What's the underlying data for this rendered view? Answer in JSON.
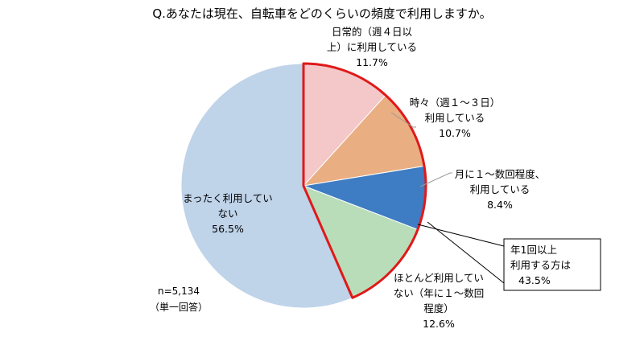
{
  "chart_data": {
    "type": "pie",
    "title": "Q.あなたは現在、自転車をどのくらいの頻度で利用しますか。",
    "slices": [
      {
        "name": "日常的（週４日以上）に利用している",
        "label_lines": [
          "日常的（週４日以",
          "上）に利用している"
        ],
        "value": 11.7,
        "value_label": "11.7%",
        "color": "#F4C7C8"
      },
      {
        "name": "時々（週１～３日）利用している",
        "label_lines": [
          "時々（週１～３日）",
          "利用している"
        ],
        "value": 10.7,
        "value_label": "10.7%",
        "color": "#EAAE83"
      },
      {
        "name": "月に１～数回程度、利用している",
        "label_lines": [
          "月に１～数回程度、",
          "利用している"
        ],
        "value": 8.4,
        "value_label": "8.4%",
        "color": "#3E7CC3"
      },
      {
        "name": "ほとんど利用していない（年に１～数回程度）",
        "label_lines": [
          "ほとんど利用してい",
          "ない（年に１～数回",
          "程度）"
        ],
        "value": 12.6,
        "value_label": "12.6%",
        "color": "#B9DDB9"
      },
      {
        "name": "まったく利用していない",
        "label_lines": [
          "まったく利用してい",
          "ない"
        ],
        "value": 56.5,
        "value_label": "56.5%",
        "color": "#BFD3E9"
      }
    ],
    "highlight": {
      "lines": [
        "年1回以上",
        "利用する方は",
        "43.5%"
      ],
      "border_color": "#E01919"
    },
    "sample_size": "n=5,134",
    "answer_type": "（単一回答）",
    "legend": "none"
  }
}
